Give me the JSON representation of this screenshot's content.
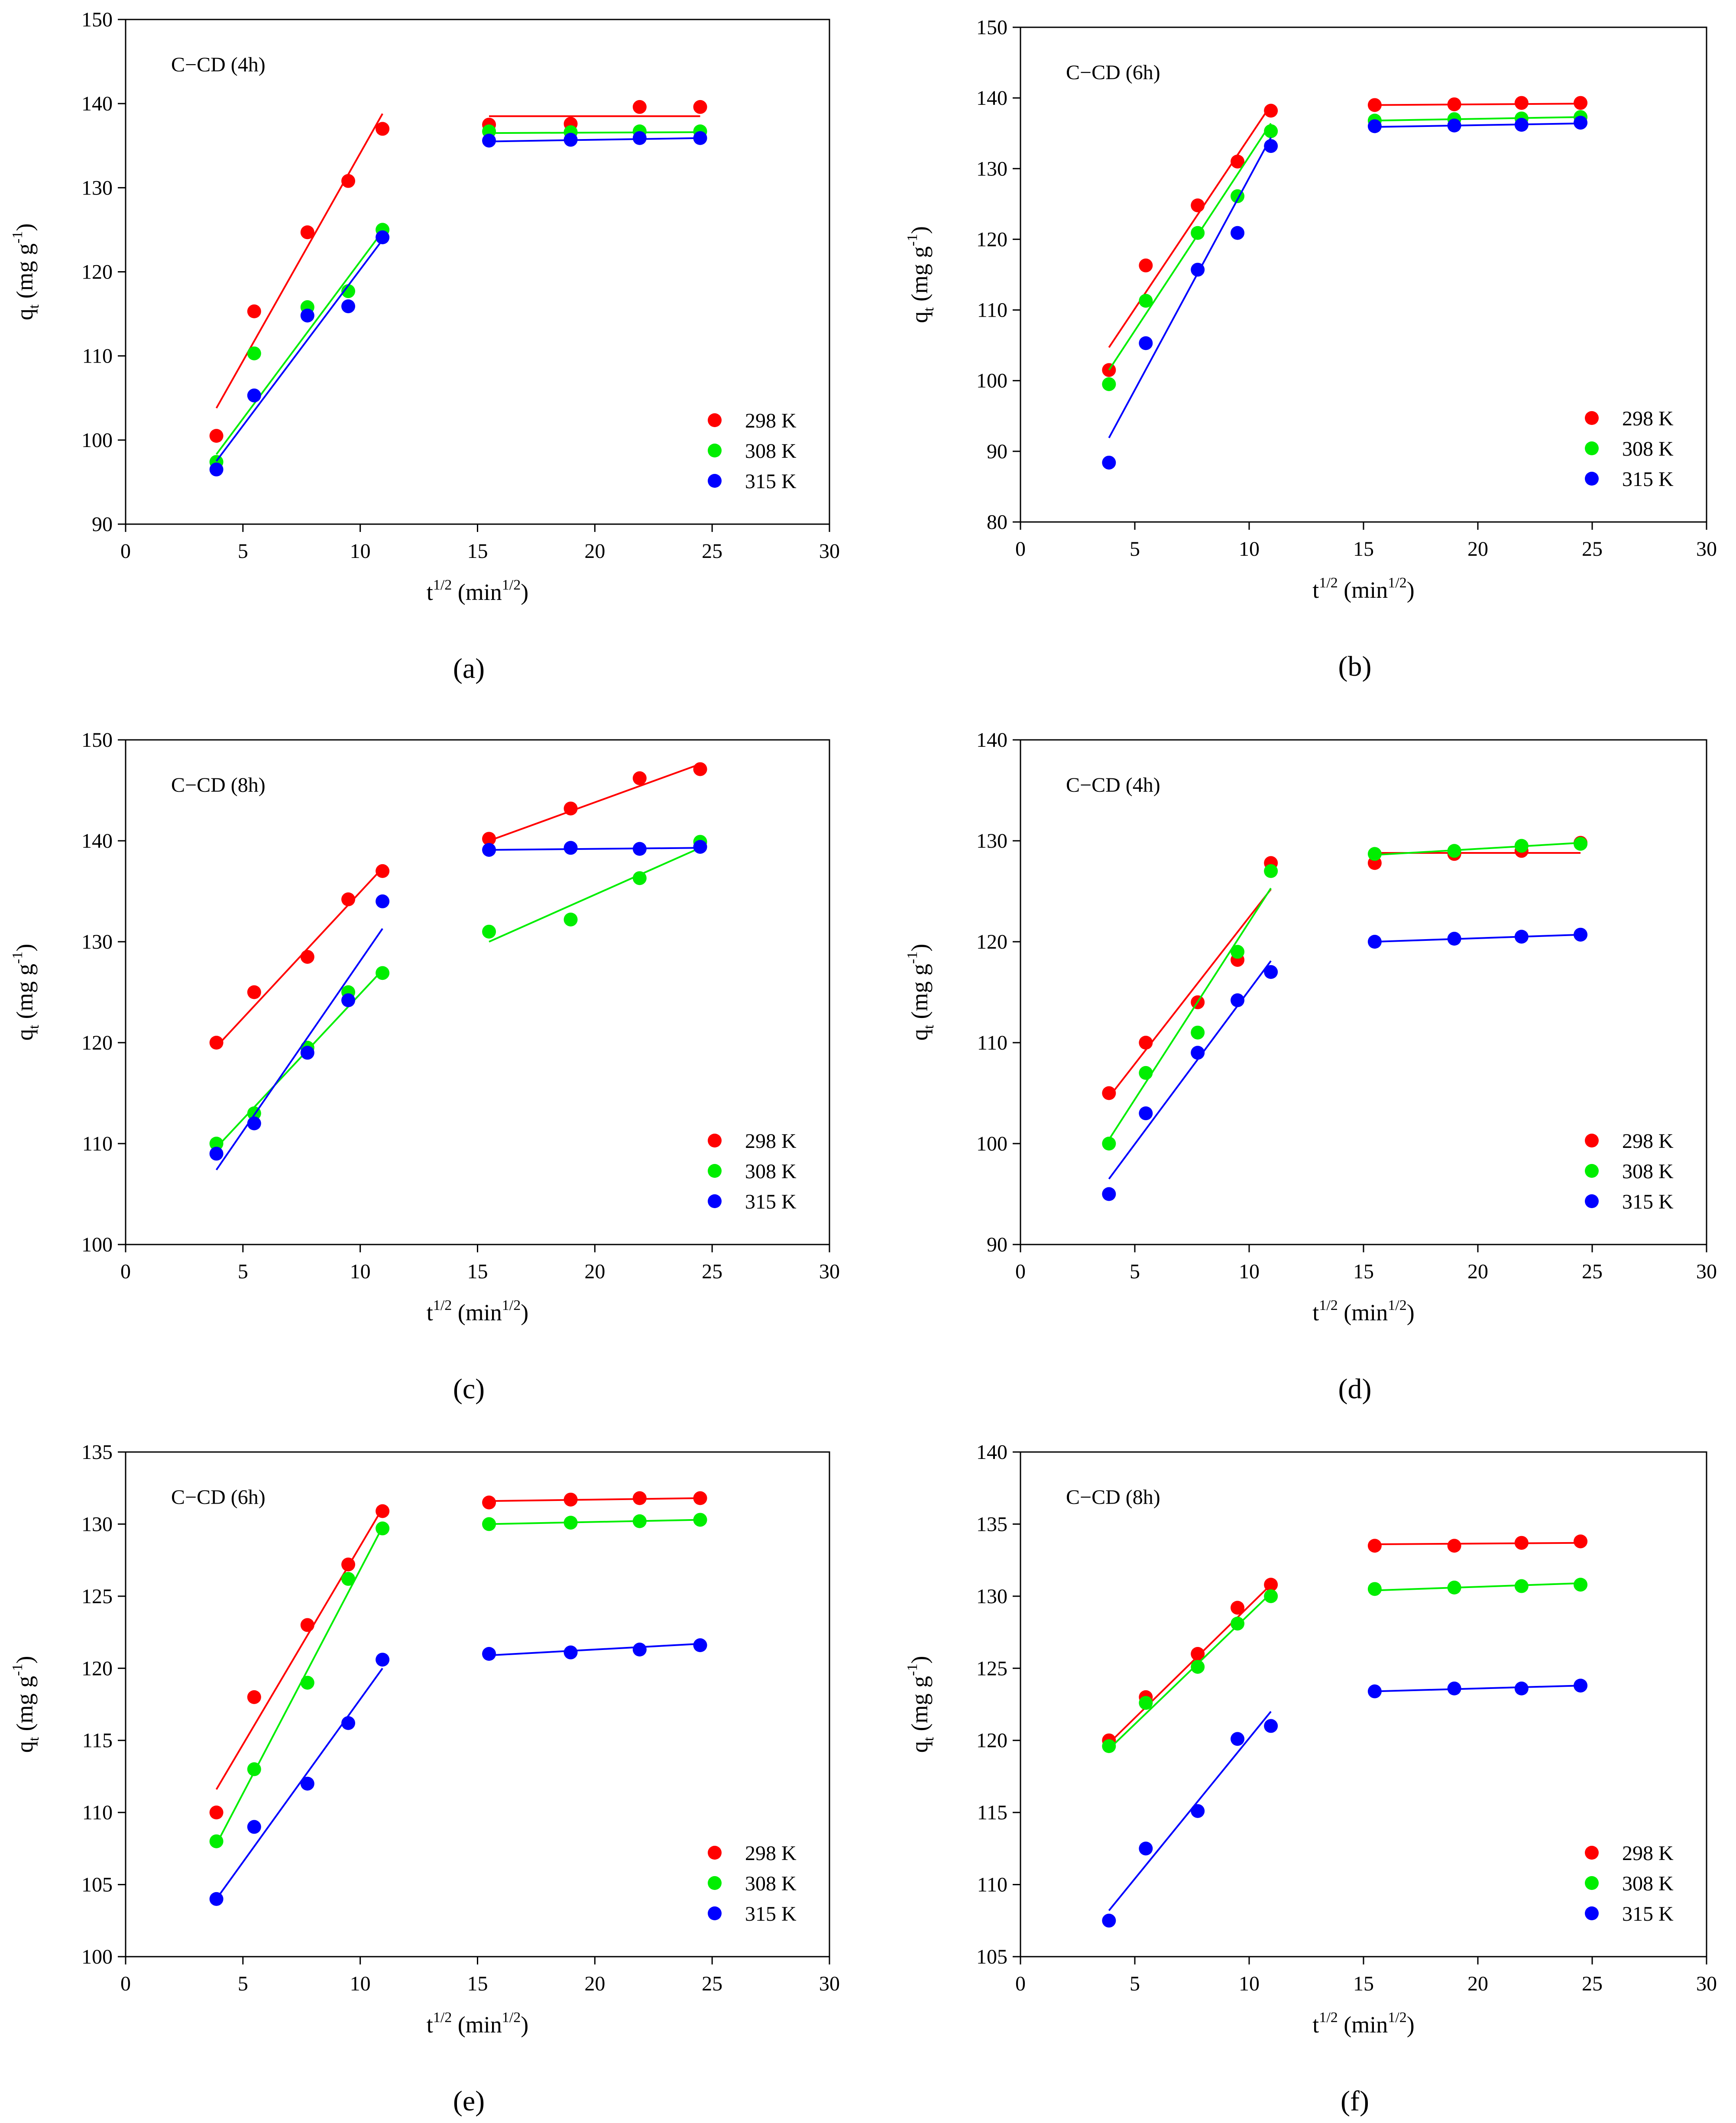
{
  "figure": {
    "common": {
      "xlabel": "t",
      "xlabel_sup": "1/2",
      "xlabel_unit_open": " (min",
      "xlabel_unit_sup": "1/2",
      "xlabel_unit_close": ")",
      "ylabel": "q",
      "ylabel_sub": "t",
      "ylabel_unit": " (mg g",
      "ylabel_unit_sup": "-1",
      "ylabel_unit_close": ")",
      "legend": [
        "298 K",
        "308 K",
        "315 K"
      ],
      "colors": [
        "#ff0000",
        "#00ee00",
        "#0000ff"
      ]
    }
  },
  "chart_data": [
    {
      "type": "scatter",
      "panel_label": "(a)",
      "annotation": "C−CD (4h)",
      "xlim": [
        0,
        30
      ],
      "ylim": [
        90,
        150
      ],
      "xticks": [
        0,
        5,
        10,
        15,
        20,
        25,
        30
      ],
      "yticks": [
        90,
        100,
        110,
        120,
        130,
        140,
        150
      ],
      "x": [
        3.87,
        5.48,
        7.75,
        9.49,
        10.95,
        15.49,
        18.97,
        21.91,
        24.49
      ],
      "series": [
        {
          "name": "298 K",
          "values": [
            100.5,
            115.3,
            124.7,
            130.8,
            137.0,
            137.5,
            137.6,
            139.6,
            139.6
          ],
          "fits": [
            {
              "x": [
                3.87,
                10.95
              ],
              "y": [
                103.8,
                138.8
              ]
            },
            {
              "x": [
                15.49,
                24.49
              ],
              "y": [
                138.5,
                138.5
              ]
            }
          ]
        },
        {
          "name": "308 K",
          "values": [
            97.4,
            110.3,
            115.8,
            117.7,
            125.0,
            136.7,
            136.6,
            136.7,
            136.7
          ],
          "fits": [
            {
              "x": [
                3.87,
                10.95
              ],
              "y": [
                98.3,
                124.8
              ]
            },
            {
              "x": [
                15.49,
                24.49
              ],
              "y": [
                136.5,
                136.6
              ]
            }
          ]
        },
        {
          "name": "315 K",
          "values": [
            96.5,
            105.3,
            114.8,
            115.9,
            124.1,
            135.6,
            135.7,
            135.9,
            135.9
          ],
          "fits": [
            {
              "x": [
                3.87,
                10.95
              ],
              "y": [
                97.5,
                123.8
              ]
            },
            {
              "x": [
                15.49,
                24.49
              ],
              "y": [
                135.5,
                135.9
              ]
            }
          ]
        }
      ]
    },
    {
      "type": "scatter",
      "panel_label": "(b)",
      "annotation": "C−CD (6h)",
      "xlim": [
        0,
        30
      ],
      "ylim": [
        80,
        150
      ],
      "xticks": [
        0,
        5,
        10,
        15,
        20,
        25,
        30
      ],
      "yticks": [
        80,
        90,
        100,
        110,
        120,
        130,
        140,
        150
      ],
      "x": [
        3.87,
        5.48,
        7.75,
        9.49,
        10.95,
        15.49,
        18.97,
        21.91,
        24.49
      ],
      "series": [
        {
          "name": "298 K",
          "values": [
            101.5,
            116.3,
            124.8,
            131.0,
            138.2,
            139.0,
            139.1,
            139.3,
            139.3
          ],
          "fits": [
            {
              "x": [
                3.87,
                10.95
              ],
              "y": [
                104.7,
                139.0
              ]
            },
            {
              "x": [
                15.49,
                24.49
              ],
              "y": [
                139.0,
                139.2
              ]
            }
          ]
        },
        {
          "name": "308 K",
          "values": [
            99.5,
            111.3,
            120.9,
            126.1,
            135.3,
            136.8,
            137.0,
            137.1,
            137.3
          ],
          "fits": [
            {
              "x": [
                3.87,
                10.95
              ],
              "y": [
                101.5,
                136.4
              ]
            },
            {
              "x": [
                15.49,
                24.49
              ],
              "y": [
                136.8,
                137.3
              ]
            }
          ]
        },
        {
          "name": "315 K",
          "values": [
            88.4,
            105.3,
            115.7,
            120.9,
            133.2,
            136.0,
            136.1,
            136.2,
            136.5
          ],
          "fits": [
            {
              "x": [
                3.87,
                10.95
              ],
              "y": [
                91.9,
                134.4
              ]
            },
            {
              "x": [
                15.49,
                24.49
              ],
              "y": [
                135.9,
                136.4
              ]
            }
          ]
        }
      ]
    },
    {
      "type": "scatter",
      "panel_label": "(c)",
      "annotation": "C−CD (8h)",
      "xlim": [
        0,
        30
      ],
      "ylim": [
        100,
        150
      ],
      "xticks": [
        0,
        5,
        10,
        15,
        20,
        25,
        30
      ],
      "yticks": [
        100,
        110,
        120,
        130,
        140,
        150
      ],
      "x": [
        3.87,
        5.48,
        7.75,
        9.49,
        10.95,
        15.49,
        18.97,
        21.91,
        24.49
      ],
      "series": [
        {
          "name": "298 K",
          "values": [
            120.0,
            125.0,
            128.5,
            134.2,
            137.0,
            140.2,
            143.2,
            146.2,
            147.1
          ],
          "fits": [
            {
              "x": [
                3.87,
                10.95
              ],
              "y": [
                119.6,
                137.3
              ]
            },
            {
              "x": [
                15.49,
                24.49
              ],
              "y": [
                140.0,
                147.6
              ]
            }
          ]
        },
        {
          "name": "308 K",
          "values": [
            110.0,
            113.0,
            119.5,
            125.0,
            126.9,
            131.0,
            132.2,
            136.3,
            139.9
          ],
          "fits": [
            {
              "x": [
                3.87,
                10.95
              ],
              "y": [
                109.6,
                127.2
              ]
            },
            {
              "x": [
                15.49,
                24.49
              ],
              "y": [
                130.0,
                139.3
              ]
            }
          ]
        },
        {
          "name": "315 K",
          "values": [
            109.0,
            112.0,
            119.0,
            124.2,
            134.0,
            139.1,
            139.3,
            139.2,
            139.4
          ],
          "fits": [
            {
              "x": [
                3.87,
                10.95
              ],
              "y": [
                107.4,
                131.3
              ]
            },
            {
              "x": [
                15.49,
                24.49
              ],
              "y": [
                139.1,
                139.3
              ]
            }
          ]
        }
      ]
    },
    {
      "type": "scatter",
      "panel_label": "(d)",
      "annotation": "C−CD (4h)",
      "xlim": [
        0,
        30
      ],
      "ylim": [
        90,
        140
      ],
      "xticks": [
        0,
        5,
        10,
        15,
        20,
        25,
        30
      ],
      "yticks": [
        90,
        100,
        110,
        120,
        130,
        140
      ],
      "x": [
        3.87,
        5.48,
        7.75,
        9.49,
        10.95,
        15.49,
        18.97,
        21.91,
        24.49
      ],
      "series": [
        {
          "name": "298 K",
          "values": [
            105.0,
            110.0,
            114.0,
            118.2,
            127.8,
            127.8,
            128.7,
            129.0,
            129.8
          ],
          "fits": [
            {
              "x": [
                3.87,
                10.95
              ],
              "y": [
                104.6,
                125.2
              ]
            },
            {
              "x": [
                15.49,
                24.49
              ],
              "y": [
                128.8,
                128.8
              ]
            }
          ]
        },
        {
          "name": "308 K",
          "values": [
            100.0,
            107.0,
            111.0,
            119.0,
            127.0,
            128.7,
            129.0,
            129.5,
            129.7
          ],
          "fits": [
            {
              "x": [
                3.87,
                10.95
              ],
              "y": [
                100.4,
                125.3
              ]
            },
            {
              "x": [
                15.49,
                24.49
              ],
              "y": [
                128.6,
                129.8
              ]
            }
          ]
        },
        {
          "name": "315 K",
          "values": [
            95.0,
            103.0,
            109.0,
            114.2,
            117.0,
            120.0,
            120.3,
            120.5,
            120.7
          ],
          "fits": [
            {
              "x": [
                3.87,
                10.95
              ],
              "y": [
                96.5,
                118.1
              ]
            },
            {
              "x": [
                15.49,
                24.49
              ],
              "y": [
                120.0,
                120.7
              ]
            }
          ]
        }
      ]
    },
    {
      "type": "scatter",
      "panel_label": "(e)",
      "annotation": "C−CD (6h)",
      "xlim": [
        0,
        30
      ],
      "ylim": [
        100,
        135
      ],
      "xticks": [
        0,
        5,
        10,
        15,
        20,
        25,
        30
      ],
      "yticks": [
        100,
        105,
        110,
        115,
        120,
        125,
        130,
        135
      ],
      "x": [
        3.87,
        5.48,
        7.75,
        9.49,
        10.95,
        15.49,
        18.97,
        21.91,
        24.49
      ],
      "series": [
        {
          "name": "298 K",
          "values": [
            110.0,
            118.0,
            123.0,
            127.2,
            130.9,
            131.5,
            131.7,
            131.8,
            131.8
          ],
          "fits": [
            {
              "x": [
                3.87,
                10.95
              ],
              "y": [
                111.6,
                131.1
              ]
            },
            {
              "x": [
                15.49,
                24.49
              ],
              "y": [
                131.6,
                131.8
              ]
            }
          ]
        },
        {
          "name": "308 K",
          "values": [
            108.0,
            113.0,
            119.0,
            126.2,
            129.7,
            130.0,
            130.1,
            130.2,
            130.3
          ],
          "fits": [
            {
              "x": [
                3.87,
                10.95
              ],
              "y": [
                107.8,
                129.8
              ]
            },
            {
              "x": [
                15.49,
                24.49
              ],
              "y": [
                130.0,
                130.3
              ]
            }
          ]
        },
        {
          "name": "315 K",
          "values": [
            104.0,
            109.0,
            112.0,
            116.2,
            120.6,
            121.0,
            121.1,
            121.3,
            121.6
          ],
          "fits": [
            {
              "x": [
                3.87,
                10.95
              ],
              "y": [
                104.0,
                120.0
              ]
            },
            {
              "x": [
                15.49,
                24.49
              ],
              "y": [
                120.9,
                121.7
              ]
            }
          ]
        }
      ]
    },
    {
      "type": "scatter",
      "panel_label": "(f)",
      "annotation": "C−CD (8h)",
      "xlim": [
        0,
        30
      ],
      "ylim": [
        105,
        140
      ],
      "xticks": [
        0,
        5,
        10,
        15,
        20,
        25,
        30
      ],
      "yticks": [
        105,
        110,
        115,
        120,
        125,
        130,
        135,
        140
      ],
      "x": [
        3.87,
        5.48,
        7.75,
        9.49,
        10.95,
        15.49,
        18.97,
        21.91,
        24.49
      ],
      "series": [
        {
          "name": "298 K",
          "values": [
            120.0,
            123.0,
            126.0,
            129.2,
            130.8,
            133.5,
            133.5,
            133.7,
            133.8
          ],
          "fits": [
            {
              "x": [
                3.87,
                10.95
              ],
              "y": [
                119.8,
                130.8
              ]
            },
            {
              "x": [
                15.49,
                24.49
              ],
              "y": [
                133.6,
                133.7
              ]
            }
          ]
        },
        {
          "name": "308 K",
          "values": [
            119.6,
            122.6,
            125.1,
            128.1,
            130.0,
            130.5,
            130.6,
            130.7,
            130.8
          ],
          "fits": [
            {
              "x": [
                3.87,
                10.95
              ],
              "y": [
                119.4,
                130.2
              ]
            },
            {
              "x": [
                15.49,
                24.49
              ],
              "y": [
                130.4,
                130.9
              ]
            }
          ]
        },
        {
          "name": "315 K",
          "values": [
            107.5,
            112.5,
            115.1,
            120.1,
            121.0,
            123.4,
            123.6,
            123.6,
            123.8
          ],
          "fits": [
            {
              "x": [
                3.87,
                10.95
              ],
              "y": [
                108.2,
                122.0
              ]
            },
            {
              "x": [
                15.49,
                24.49
              ],
              "y": [
                123.4,
                123.8
              ]
            }
          ]
        }
      ]
    }
  ]
}
